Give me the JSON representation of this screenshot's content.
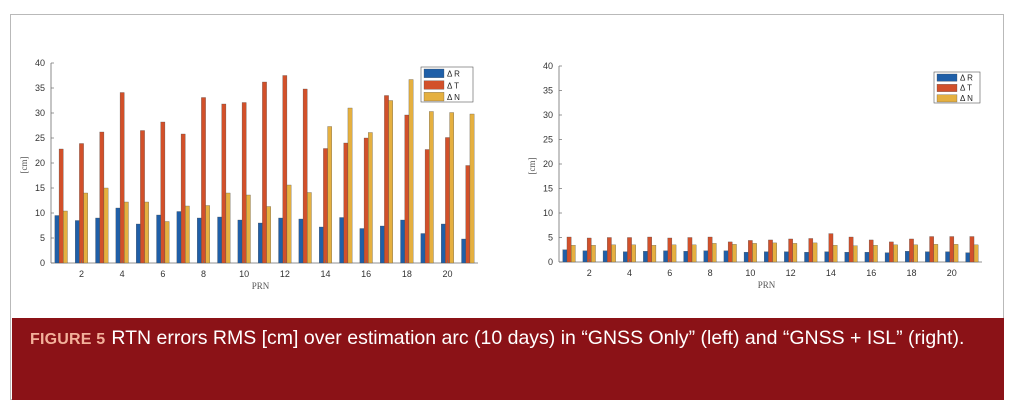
{
  "caption": {
    "label": "FIGURE 5",
    "text": "RTN errors RMS [cm] over estimation arc (10 days) in “GNSS Only” (left) and “GNSS + ISL” (right)."
  },
  "colors": {
    "dR": "#1f5fa8",
    "dT": "#d2502a",
    "dN": "#e5b040",
    "caption_bg": "#8b1217",
    "caption_label": "#f3b19b"
  },
  "chart_data": [
    {
      "type": "bar",
      "panel": "left",
      "xlabel": "PRN",
      "ylabel": "[cm]",
      "ylim": [
        0,
        40
      ],
      "yticks": [
        "0",
        "5",
        "10",
        "15",
        "20",
        "25",
        "30",
        "35",
        "40"
      ],
      "categories": [
        1,
        2,
        3,
        4,
        5,
        6,
        7,
        8,
        9,
        10,
        11,
        12,
        13,
        14,
        15,
        16,
        17,
        18,
        19,
        20,
        21
      ],
      "xticks": [
        "2",
        "4",
        "6",
        "8",
        "10",
        "12",
        "14",
        "16",
        "18",
        "20"
      ],
      "legend_position": "top-right",
      "series": [
        {
          "name": "Δ R",
          "values": [
            9.5,
            8.5,
            9.0,
            11.0,
            7.8,
            9.6,
            10.3,
            9.0,
            9.2,
            8.6,
            8.0,
            9.0,
            8.8,
            7.2,
            9.1,
            6.9,
            7.4,
            8.6,
            5.9,
            7.8,
            4.8
          ]
        },
        {
          "name": "Δ T",
          "values": [
            22.8,
            23.9,
            26.2,
            34.1,
            26.5,
            28.2,
            25.8,
            33.1,
            31.8,
            32.1,
            36.2,
            37.5,
            34.8,
            22.9,
            24.0,
            25.0,
            33.5,
            29.6,
            22.7,
            25.1,
            19.5
          ]
        },
        {
          "name": "Δ N",
          "values": [
            10.4,
            14.0,
            15.0,
            12.2,
            12.2,
            8.3,
            11.4,
            11.5,
            14.0,
            13.6,
            11.3,
            15.6,
            14.1,
            27.3,
            31.0,
            26.1,
            32.5,
            36.7,
            30.3,
            30.1,
            29.8
          ]
        }
      ]
    },
    {
      "type": "bar",
      "panel": "right",
      "xlabel": "PRN",
      "ylabel": "[cm]",
      "ylim": [
        0,
        40
      ],
      "yticks": [
        "0",
        "5",
        "10",
        "15",
        "20",
        "25",
        "30",
        "35",
        "40"
      ],
      "categories": [
        1,
        2,
        3,
        4,
        5,
        6,
        7,
        8,
        9,
        10,
        11,
        12,
        13,
        14,
        15,
        16,
        17,
        18,
        19,
        20,
        21
      ],
      "xticks": [
        "2",
        "4",
        "6",
        "8",
        "10",
        "12",
        "14",
        "16",
        "18",
        "20"
      ],
      "legend_position": "top-right",
      "series": [
        {
          "name": "Δ R",
          "values": [
            2.5,
            2.3,
            2.3,
            2.1,
            2.2,
            2.3,
            2.2,
            2.3,
            2.3,
            2.0,
            2.1,
            2.1,
            2.0,
            2.1,
            2.0,
            2.0,
            1.9,
            2.2,
            2.1,
            2.1,
            1.9
          ]
        },
        {
          "name": "Δ T",
          "values": [
            5.1,
            4.9,
            5.0,
            5.0,
            5.1,
            4.9,
            5.0,
            5.1,
            4.1,
            4.4,
            4.5,
            4.7,
            4.8,
            5.8,
            5.1,
            4.5,
            4.1,
            4.7,
            5.2,
            5.2,
            5.2
          ]
        },
        {
          "name": "Δ N",
          "values": [
            3.4,
            3.4,
            3.5,
            3.5,
            3.4,
            3.5,
            3.5,
            3.8,
            3.6,
            3.8,
            3.9,
            3.8,
            3.9,
            3.4,
            3.3,
            3.4,
            3.5,
            3.5,
            3.6,
            3.6,
            3.5
          ]
        }
      ]
    }
  ]
}
